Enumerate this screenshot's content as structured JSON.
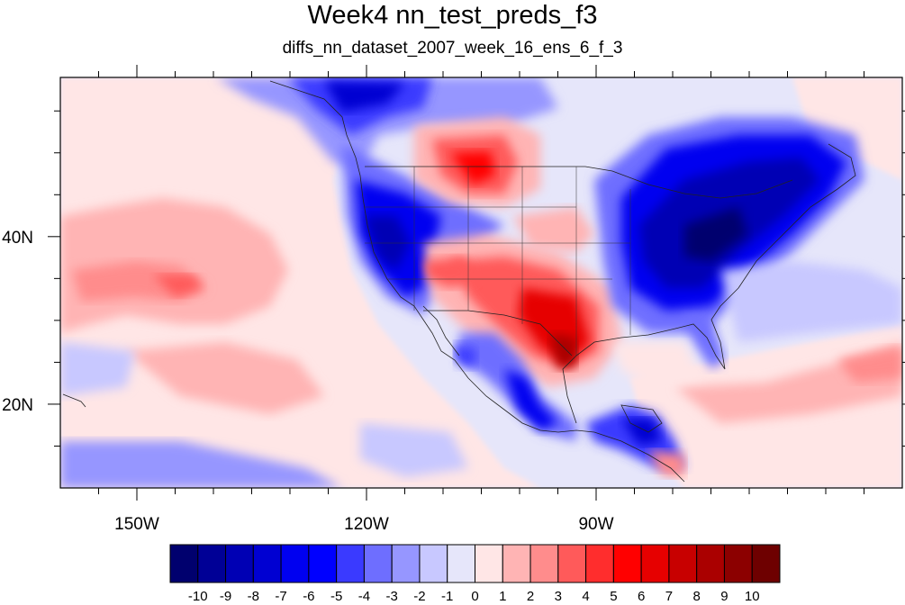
{
  "title": "Week4 nn_test_preds_f3",
  "subtitle": "diffs_nn_dataset_2007_week_16_ens_6_f_3",
  "map": {
    "lon_range": [
      -160,
      -50
    ],
    "lat_range": [
      10,
      59
    ],
    "x_ticks": [
      {
        "lon": -150,
        "label": "150W"
      },
      {
        "lon": -120,
        "label": "120W"
      },
      {
        "lon": -90,
        "label": "90W"
      }
    ],
    "y_ticks": [
      {
        "lat": 20,
        "label": "20N"
      },
      {
        "lat": 40,
        "label": "40N"
      }
    ]
  },
  "colorbar": {
    "labels": [
      "-10",
      "-9",
      "-8",
      "-7",
      "-6",
      "-5",
      "-4",
      "-3",
      "-2",
      "-1",
      "0",
      "1",
      "2",
      "3",
      "4",
      "5",
      "6",
      "7",
      "8",
      "9",
      "10"
    ],
    "colors": [
      "#00006e",
      "#000096",
      "#0000b4",
      "#0000d2",
      "#0000f0",
      "#0000ff",
      "#3a3aff",
      "#6e6eff",
      "#9696ff",
      "#c8c8ff",
      "#e6e6fa",
      "#ffe6e6",
      "#ffb4b4",
      "#ff8c8c",
      "#ff5a5a",
      "#ff2d2d",
      "#ff0000",
      "#e60000",
      "#c80000",
      "#aa0000",
      "#8c0000",
      "#6e0000"
    ]
  }
}
